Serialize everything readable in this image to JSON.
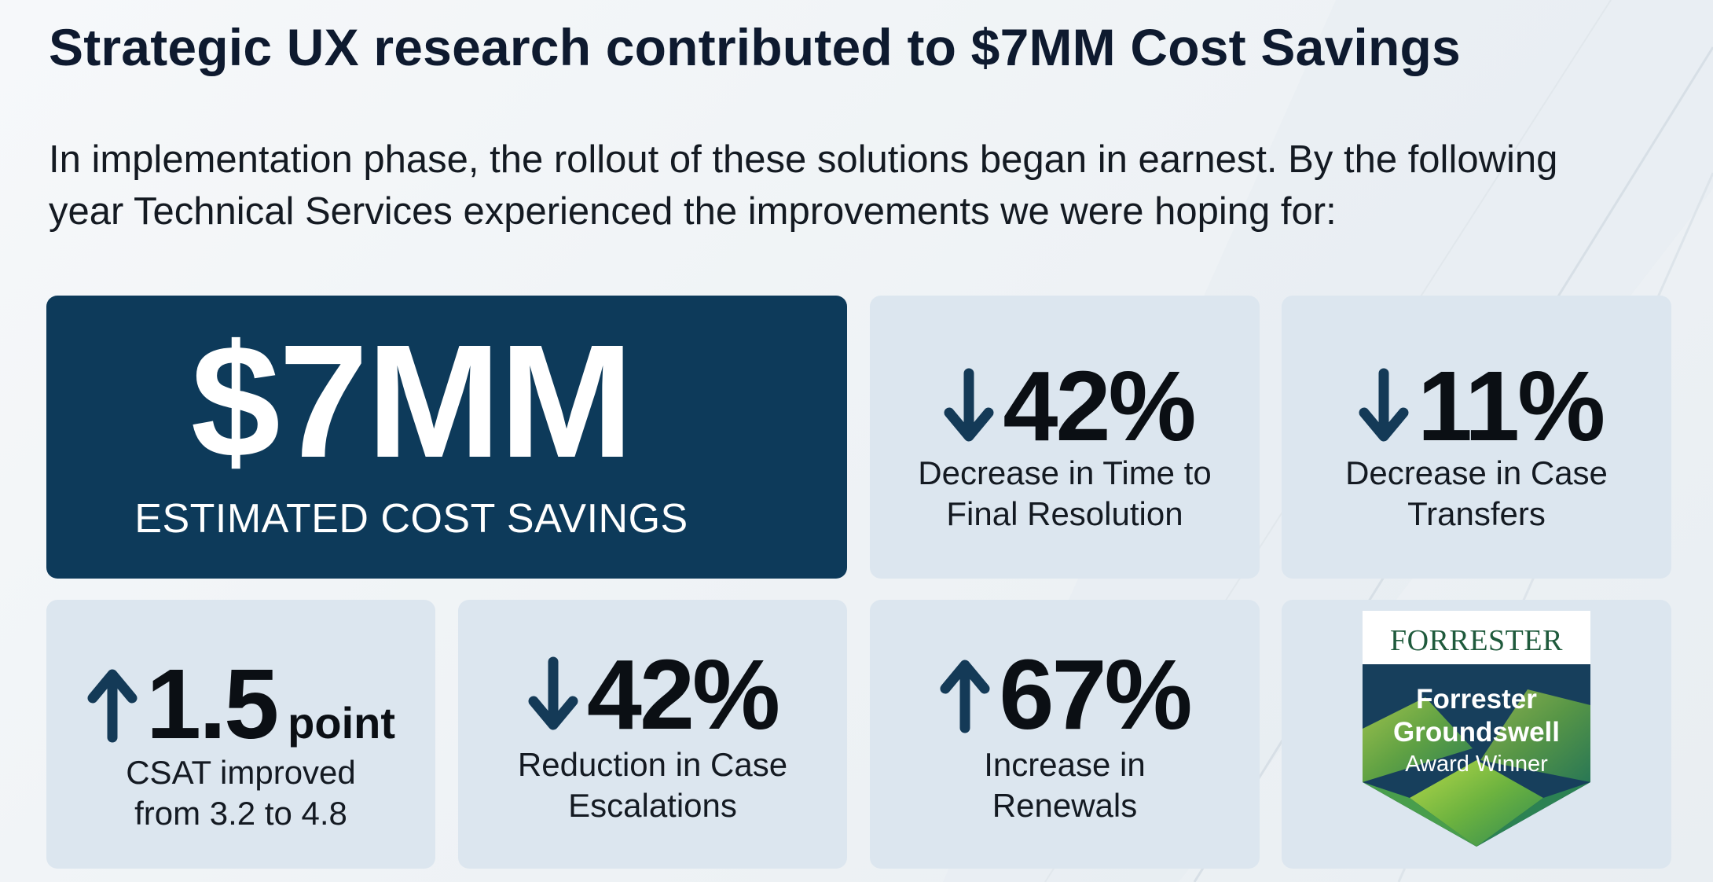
{
  "header": {
    "title": "Strategic UX research contributed to $7MM Cost Savings",
    "intro_line1": "In implementation phase, the rollout of these solutions began in earnest. By the following",
    "intro_line2": "year Technical Services experienced the improvements we were hoping for:"
  },
  "hero": {
    "value": "$7MM",
    "label": "ESTIMATED COST SAVINGS"
  },
  "metrics": [
    {
      "arrow": "arrow-down-icon",
      "value": "42%",
      "unit": "",
      "caption_line1": "Decrease in Time to",
      "caption_line2": "Final Resolution"
    },
    {
      "arrow": "arrow-down-icon",
      "value": "11%",
      "unit": "",
      "caption_line1": "Decrease in Case",
      "caption_line2": "Transfers"
    },
    {
      "arrow": "arrow-up-icon",
      "value": "1.5",
      "unit": "point",
      "caption_line1": "CSAT improved",
      "caption_line2": "from 3.2 to 4.8"
    },
    {
      "arrow": "arrow-down-icon",
      "value": "42%",
      "unit": "",
      "caption_line1": "Reduction in Case",
      "caption_line2": "Escalations"
    },
    {
      "arrow": "arrow-up-icon",
      "value": "67%",
      "unit": "",
      "caption_line1": "Increase in",
      "caption_line2": "Renewals"
    }
  ],
  "award": {
    "brand": "FORRESTER",
    "title_line1": "Forrester",
    "title_line2": "Groundswell",
    "subtitle": "Award Winner"
  },
  "colors": {
    "hero_bg": "#0d3a5a",
    "card_bg": "#dce6ef",
    "arrow": "#143a57",
    "title": "#0e1a2f",
    "badge_bg": "#173f5c",
    "badge_green": "#8cc43f",
    "forrester_green": "#1f5a3c"
  }
}
